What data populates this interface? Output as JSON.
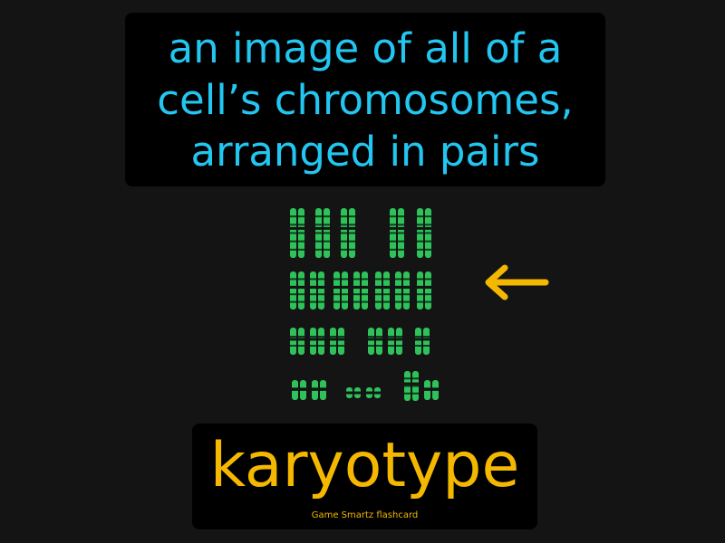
{
  "definition": {
    "lines": [
      "an image of all of a",
      "cell’s chromosomes,",
      "arranged in pairs"
    ]
  },
  "term": "karyotype",
  "brand": "Game Smartz flashcard",
  "colors": {
    "background": "#141414",
    "panel": "#000000",
    "definition_text": "#22c6f0",
    "term_text": "#f5b800",
    "arrow": "#f5b800",
    "chromosome": "#2fc25b"
  },
  "icons": {
    "illustration": "karyotype-illustration",
    "pointer": "arrow-left-icon"
  }
}
